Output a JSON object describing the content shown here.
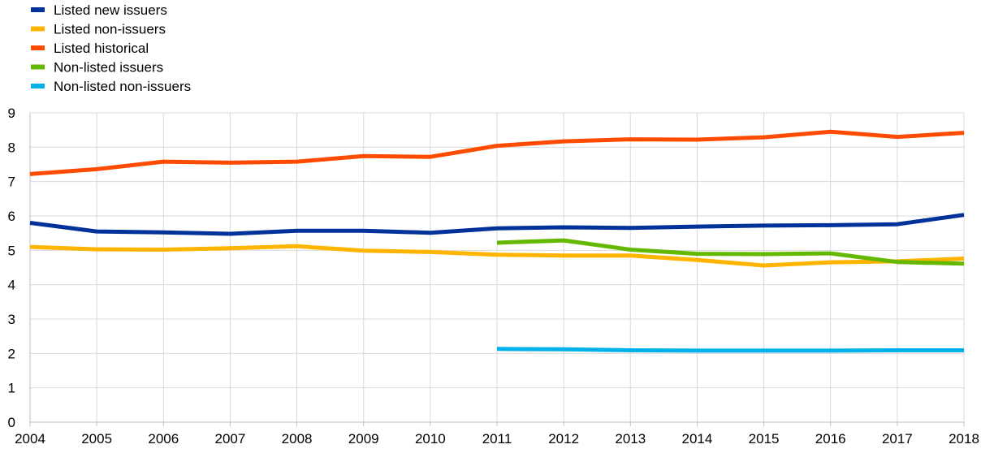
{
  "chart_data": {
    "type": "line",
    "title": "",
    "xlabel": "",
    "ylabel": "",
    "x": [
      "2004",
      "2005",
      "2006",
      "2007",
      "2008",
      "2009",
      "2010",
      "2011",
      "2012",
      "2013",
      "2014",
      "2015",
      "2016",
      "2017",
      "2018"
    ],
    "ylim": [
      0,
      9
    ],
    "yticks": [
      "0",
      "1",
      "2",
      "3",
      "4",
      "5",
      "6",
      "7",
      "8",
      "9"
    ],
    "grid": true,
    "legend_position": "top-left",
    "series": [
      {
        "name": "Listed new issuers",
        "color": "#003299",
        "values": [
          5.8,
          5.55,
          5.52,
          5.48,
          5.57,
          5.57,
          5.51,
          5.64,
          5.67,
          5.65,
          5.69,
          5.72,
          5.73,
          5.76,
          6.03
        ]
      },
      {
        "name": "Listed non-issuers",
        "color": "#FFB400",
        "values": [
          5.1,
          5.03,
          5.02,
          5.06,
          5.12,
          4.99,
          4.95,
          4.87,
          4.85,
          4.85,
          4.72,
          4.56,
          4.65,
          4.68,
          4.76
        ]
      },
      {
        "name": "Listed historical",
        "color": "#FF4B00",
        "values": [
          7.22,
          7.36,
          7.58,
          7.55,
          7.58,
          7.74,
          7.72,
          8.04,
          8.17,
          8.23,
          8.22,
          8.29,
          8.45,
          8.3,
          8.42
        ]
      },
      {
        "name": "Non-listed issuers",
        "color": "#65B800",
        "values": [
          null,
          null,
          null,
          null,
          null,
          null,
          null,
          5.22,
          5.29,
          5.02,
          4.9,
          4.89,
          4.91,
          4.66,
          4.61
        ]
      },
      {
        "name": "Non-listed non-issuers",
        "color": "#00B1EA",
        "values": [
          null,
          null,
          null,
          null,
          null,
          null,
          null,
          2.13,
          2.12,
          2.09,
          2.08,
          2.08,
          2.08,
          2.09,
          2.09
        ]
      }
    ]
  }
}
